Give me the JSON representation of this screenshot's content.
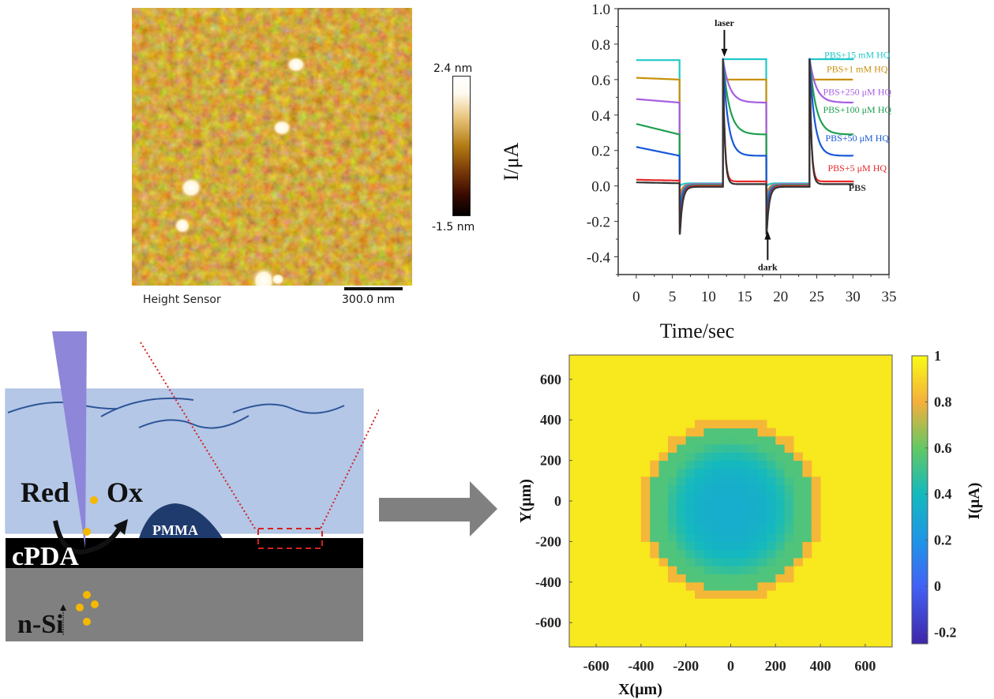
{
  "afm": {
    "label": "Height Sensor",
    "scale_bar": "300.0 nm",
    "colorbar_max": "2.4 nm",
    "colorbar_min": "-1.5 nm"
  },
  "schematic": {
    "label_red": "Red",
    "label_ox": "Ox",
    "label_pmma": "PMMA",
    "label_cpda": "cPDA",
    "label_nsi": "n-Si",
    "colors": {
      "electrolyte": "#b4c7e7",
      "tip": "#8e86d9",
      "cpda": "#000000",
      "nsi": "#808080",
      "pmma": "#1f3b6e",
      "particles": "#f5b800",
      "zoom_box": "#d42020"
    }
  },
  "chart_data": [
    {
      "type": "line",
      "title": "",
      "xlabel": "Time/sec",
      "ylabel": "I/μA",
      "xlim": [
        -2.5,
        35
      ],
      "ylim": [
        -0.5,
        1.0
      ],
      "xticks": [
        0,
        5,
        10,
        15,
        20,
        25,
        30,
        35
      ],
      "yticks": [
        -0.4,
        -0.2,
        0.0,
        0.2,
        0.4,
        0.6,
        0.8,
        1.0
      ],
      "ytick_labels": [
        "-0.4",
        "-0.2",
        "0.0",
        "0.2",
        "0.4",
        "0.6",
        "0.8",
        "1.0"
      ],
      "grid": false,
      "light_on_intervals": [
        [
          0,
          6
        ],
        [
          12,
          18
        ],
        [
          24,
          30
        ]
      ],
      "annotations": [
        {
          "text": "laser",
          "x": 12.2,
          "y": 0.72,
          "direction": "down"
        },
        {
          "text": "dark",
          "x": 18.2,
          "y": -0.24,
          "direction": "up"
        }
      ],
      "series": [
        {
          "name": "PBS+15 mM HQ",
          "color": "#20c8c8",
          "on_start": 0.71,
          "on_end": 0.71,
          "dark_spike": 0.0,
          "dark_level": 0.015
        },
        {
          "name": "PBS+1 mM HQ",
          "color": "#c8900a",
          "on_start": 0.61,
          "on_end": 0.6,
          "dark_spike": -0.05,
          "dark_level": 0.01
        },
        {
          "name": "PBS+250 μM HQ",
          "color": "#a65ee0",
          "on_start": 0.49,
          "on_end": 0.47,
          "dark_spike": -0.09,
          "dark_level": 0.01
        },
        {
          "name": "PBS+100 μM HQ",
          "color": "#1fa050",
          "on_start": 0.35,
          "on_end": 0.29,
          "dark_spike": -0.12,
          "dark_level": 0.005
        },
        {
          "name": "PBS+50 μM HQ",
          "color": "#1858d8",
          "on_start": 0.22,
          "on_end": 0.17,
          "dark_spike": -0.15,
          "dark_level": 0.0
        },
        {
          "name": "PBS+5 μM HQ",
          "color": "#e82828",
          "on_start": 0.035,
          "on_end": 0.03,
          "dark_spike": -0.25,
          "dark_level": 0.0
        },
        {
          "name": "PBS",
          "color": "#333333",
          "on_start": 0.02,
          "on_end": 0.015,
          "dark_spike": -0.27,
          "dark_level": -0.005
        }
      ]
    },
    {
      "type": "heatmap",
      "title": "",
      "xlabel": "X(μm)",
      "ylabel": "Y(μm)",
      "xlim": [
        -720,
        720
      ],
      "ylim": [
        -720,
        720
      ],
      "xticks": [
        -600,
        -400,
        -200,
        0,
        200,
        400,
        600
      ],
      "yticks": [
        -600,
        -400,
        -200,
        0,
        200,
        400,
        600
      ],
      "colorbar_label": "I(μA)",
      "colorbar_range": [
        -0.25,
        1.0
      ],
      "colorbar_ticks": [
        -0.2,
        0,
        0.2,
        0.4,
        0.6,
        0.8,
        1
      ],
      "colorbar_tick_labels": [
        "-0.2",
        "0",
        "0.2",
        "0.4",
        "0.6",
        "0.8",
        "1"
      ],
      "colormap": "parula",
      "background_value": 0.95,
      "spot": {
        "center_x": 0,
        "center_y": -40,
        "radius_x": 370,
        "radius_y": 420,
        "center_value": 0.33,
        "edge_value": 0.55,
        "rim_value": 0.82
      },
      "pixel_size_um": 40
    }
  ]
}
